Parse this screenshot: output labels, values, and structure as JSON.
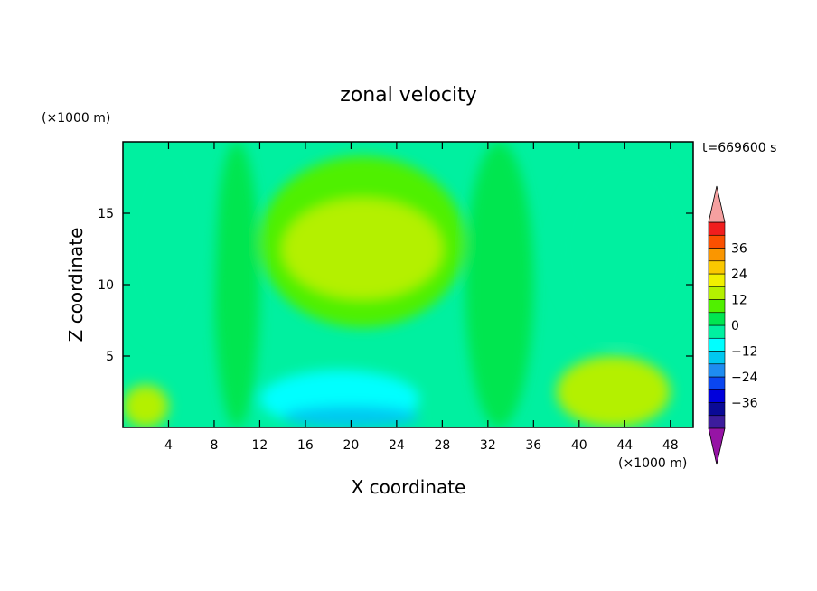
{
  "chart_data": {
    "type": "heatmap",
    "title": "zonal velocity",
    "time_label": "t=669600 s",
    "xlabel": "X coordinate",
    "ylabel": "Z coordinate",
    "x_unit": "(×1000 m)",
    "y_unit": "(×1000 m)",
    "xlim": [
      0,
      50
    ],
    "ylim": [
      0,
      20
    ],
    "x_ticks": [
      4,
      8,
      12,
      16,
      20,
      24,
      28,
      32,
      36,
      40,
      44,
      48
    ],
    "y_ticks": [
      5,
      10,
      15
    ],
    "colorbar": {
      "ticks": [
        36,
        24,
        12,
        0,
        -12,
        -24,
        -36
      ],
      "levels": [
        -42,
        -36,
        -30,
        -24,
        -18,
        -12,
        -6,
        0,
        6,
        12,
        18,
        24,
        30,
        36,
        42
      ],
      "colors": [
        "#3c1c9c",
        "#0a0a96",
        "#0000dc",
        "#0a46f0",
        "#1e8cf0",
        "#00c8f0",
        "#00ffff",
        "#00f0a0",
        "#00e650",
        "#50f000",
        "#b4f000",
        "#f0f000",
        "#fac800",
        "#fa9600",
        "#fa5000",
        "#f01e1e"
      ],
      "under_color": "#9614a5",
      "over_color": "#f5a0a0"
    },
    "regions": [
      {
        "level": "-6 to 0",
        "x": [
          0,
          8
        ],
        "z": [
          6,
          20
        ]
      },
      {
        "level": "-6 to 0",
        "x": [
          38,
          50
        ],
        "z": [
          6,
          19
        ]
      },
      {
        "level": "0 to 6",
        "x": [
          8,
          12
        ],
        "z": [
          0,
          20
        ]
      },
      {
        "level": "0 to 6",
        "x": [
          30,
          36
        ],
        "z": [
          0,
          20
        ]
      },
      {
        "level": "6 to 12",
        "x": [
          12,
          30
        ],
        "z": [
          7,
          19
        ]
      },
      {
        "level": "12 to 18",
        "x": [
          14,
          28
        ],
        "z": [
          9,
          16
        ]
      },
      {
        "level": "-12 to -6",
        "x": [
          12,
          26
        ],
        "z": [
          0,
          4
        ]
      },
      {
        "level": "-18 to -12",
        "x": [
          14,
          26
        ],
        "z": [
          0,
          1.5
        ]
      },
      {
        "level": "6 to 18",
        "x": [
          38,
          48
        ],
        "z": [
          0,
          5
        ]
      },
      {
        "level": "6 to 18",
        "x": [
          0,
          4
        ],
        "z": [
          0,
          3
        ]
      }
    ]
  }
}
